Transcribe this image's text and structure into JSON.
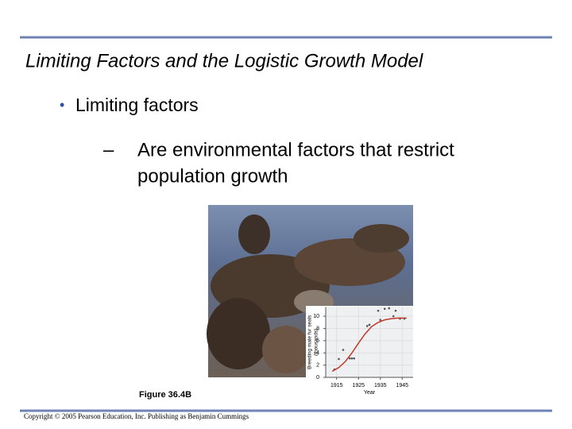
{
  "slide": {
    "title": "Limiting Factors and the Logistic Growth Model",
    "bullet": {
      "marker": "•",
      "text": "Limiting factors"
    },
    "sub_bullet": {
      "marker": "–",
      "lines": [
        "Are environmental factors that restrict",
        "population growth"
      ]
    },
    "caption": "Figure 36.4B",
    "copyright": "Copyright © 2005 Pearson Education, Inc. Publishing as Benjamin Cummings"
  },
  "chart_data": {
    "type": "scatter",
    "x_label": "Year",
    "y_label": [
      "Breeding male fur seals",
      "(thousands)"
    ],
    "xlim": [
      1910,
      1950
    ],
    "xticks": [
      1915,
      1925,
      1935,
      1945
    ],
    "ylim": [
      0,
      11.5
    ],
    "yticks": [
      0,
      2,
      4,
      6,
      8,
      10
    ],
    "grid": true,
    "series": [
      {
        "color": "#555555",
        "x": [
          1914,
          1916,
          1918,
          1921,
          1922,
          1923,
          1929,
          1930,
          1934,
          1935,
          1937,
          1939,
          1941,
          1942,
          1944,
          1946
        ],
        "values": [
          1.3,
          3.0,
          4.5,
          3.1,
          3.1,
          3.1,
          8.4,
          8.6,
          10.9,
          9.4,
          11.2,
          11.3,
          10,
          10.9,
          9.6,
          9.6
        ]
      },
      {
        "color": "#c0392b",
        "line": true,
        "x": [
          1913,
          1916,
          1919,
          1922,
          1925,
          1928,
          1931,
          1934,
          1937,
          1940,
          1943,
          1947
        ],
        "values": [
          1.0,
          1.6,
          2.6,
          4.0,
          5.6,
          7.1,
          8.3,
          9.0,
          9.4,
          9.6,
          9.7,
          9.7
        ]
      }
    ]
  }
}
